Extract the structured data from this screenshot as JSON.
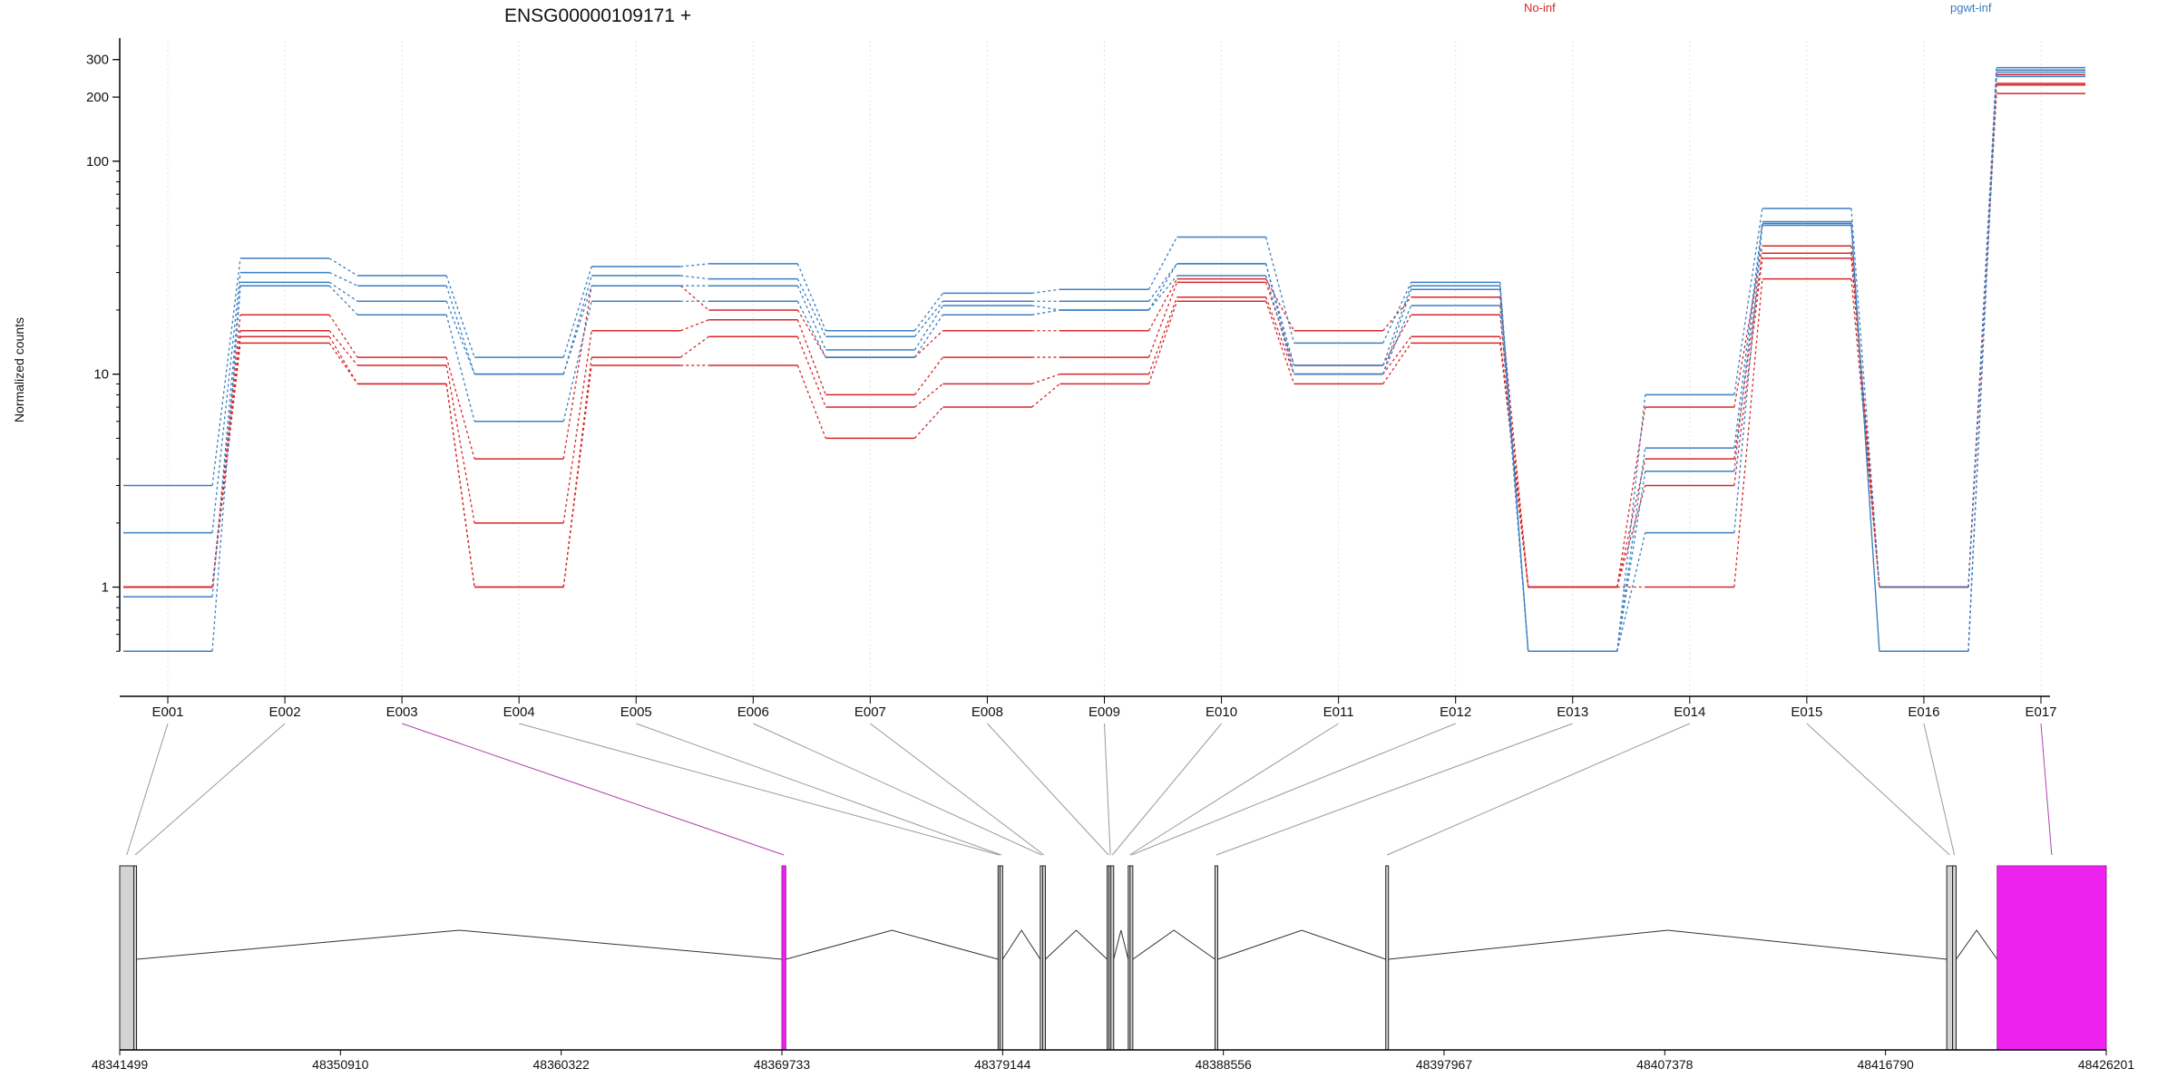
{
  "chart_data": {
    "type": "line",
    "title": "ENSG00000109171 +",
    "ylabel": "Normalized counts",
    "xlabel": "",
    "y_scale": "log",
    "y_ticks": [
      1,
      10,
      100,
      200,
      300
    ],
    "y_tick_labels": [
      "1",
      "10",
      "100",
      "200",
      "300"
    ],
    "ylim": [
      0.4,
      350
    ],
    "legend": [
      {
        "name": "No-inf",
        "color": "#d62728",
        "position": "top"
      },
      {
        "name": "pgwt-inf",
        "color": "#3a7fc1",
        "position": "top-right"
      }
    ],
    "categories": [
      "E001",
      "E002",
      "E003",
      "E004",
      "E005",
      "E006",
      "E007",
      "E008",
      "E009",
      "E010",
      "E011",
      "E012",
      "E013",
      "E014",
      "E015",
      "E016",
      "E017"
    ],
    "series": [
      {
        "group": "No-inf",
        "color": "#d62728",
        "values": [
          1,
          19,
          12,
          4,
          26,
          20,
          12,
          16,
          16,
          28,
          16,
          23,
          1,
          7,
          40,
          1,
          255
        ]
      },
      {
        "group": "No-inf",
        "color": "#d62728",
        "values": [
          1,
          16,
          11,
          2,
          16,
          18,
          8,
          12,
          12,
          27,
          11,
          19,
          1,
          4,
          37,
          1,
          232
        ]
      },
      {
        "group": "No-inf",
        "color": "#d62728",
        "values": [
          1,
          15,
          9,
          1,
          12,
          15,
          7,
          9,
          10,
          23,
          10,
          15,
          1,
          3,
          35,
          1,
          228
        ]
      },
      {
        "group": "No-inf",
        "color": "#d62728",
        "values": [
          1,
          14,
          9,
          1,
          11,
          11,
          5,
          7,
          9,
          22,
          9,
          14,
          1,
          1,
          28,
          1,
          208
        ]
      },
      {
        "group": "pgwt-inf",
        "color": "#3a7fc1",
        "values": [
          3,
          35,
          29,
          12,
          32,
          33,
          16,
          24,
          25,
          44,
          14,
          27,
          0.5,
          8,
          60,
          1,
          275
        ]
      },
      {
        "group": "pgwt-inf",
        "color": "#3a7fc1",
        "values": [
          1.8,
          30,
          26,
          10,
          29,
          28,
          15,
          22,
          22,
          33,
          11,
          26,
          0.5,
          4.5,
          52,
          0.5,
          268
        ]
      },
      {
        "group": "pgwt-inf",
        "color": "#3a7fc1",
        "values": [
          0.9,
          27,
          22,
          10,
          26,
          26,
          13,
          21,
          20,
          33,
          10,
          25,
          0.5,
          3.5,
          51,
          0.5,
          262
        ]
      },
      {
        "group": "pgwt-inf",
        "color": "#3a7fc1",
        "values": [
          0.5,
          26,
          19,
          6,
          22,
          22,
          12,
          19,
          20,
          29,
          10,
          21,
          0.5,
          1.8,
          50,
          0.5,
          250
        ]
      }
    ],
    "genome_axis": {
      "range": [
        48341499,
        48426201
      ],
      "tick_labels": [
        "48341499",
        "48350910",
        "48360322",
        "48369733",
        "48379144",
        "48388556",
        "48397967",
        "48407378",
        "48416790",
        "48426201"
      ],
      "tick_values": [
        48341499,
        48350910,
        48360322,
        48369733,
        48379144,
        48388556,
        48397967,
        48407378,
        48416790,
        48426201
      ]
    },
    "exons": [
      {
        "id": "E001",
        "start": 48341499,
        "end": 48342100,
        "highlight": false
      },
      {
        "id": "E002",
        "start": 48342100,
        "end": 48342110,
        "highlight": false
      },
      {
        "id": "E003",
        "start": 48369733,
        "end": 48369900,
        "highlight": true
      },
      {
        "id": "E004",
        "start": 48378950,
        "end": 48379030,
        "highlight": false
      },
      {
        "id": "E005",
        "start": 48379030,
        "end": 48379120,
        "highlight": false
      },
      {
        "id": "E006",
        "start": 48380750,
        "end": 48380850,
        "highlight": false
      },
      {
        "id": "E007",
        "start": 48380850,
        "end": 48380950,
        "highlight": false
      },
      {
        "id": "E008",
        "start": 48383600,
        "end": 48383680,
        "highlight": false
      },
      {
        "id": "E009",
        "start": 48383680,
        "end": 48383760,
        "highlight": false
      },
      {
        "id": "E010",
        "start": 48383760,
        "end": 48383880,
        "highlight": false
      },
      {
        "id": "E011",
        "start": 48384500,
        "end": 48384580,
        "highlight": false
      },
      {
        "id": "E012",
        "start": 48384580,
        "end": 48384660,
        "highlight": false
      },
      {
        "id": "E013",
        "start": 48388200,
        "end": 48388300,
        "highlight": false
      },
      {
        "id": "E014",
        "start": 48395480,
        "end": 48395560,
        "highlight": false
      },
      {
        "id": "E015",
        "start": 48419400,
        "end": 48419650,
        "highlight": false
      },
      {
        "id": "E016",
        "start": 48419650,
        "end": 48419800,
        "highlight": false
      },
      {
        "id": "E017",
        "start": 48421550,
        "end": 48426201,
        "highlight": true
      }
    ],
    "colors": {
      "no_inf": "#d62728",
      "pgwt_inf": "#3a7fc1",
      "highlight": "#ee22ee",
      "highlight_line": "#b040b0",
      "exon_fill": "#d3d3d3"
    }
  }
}
